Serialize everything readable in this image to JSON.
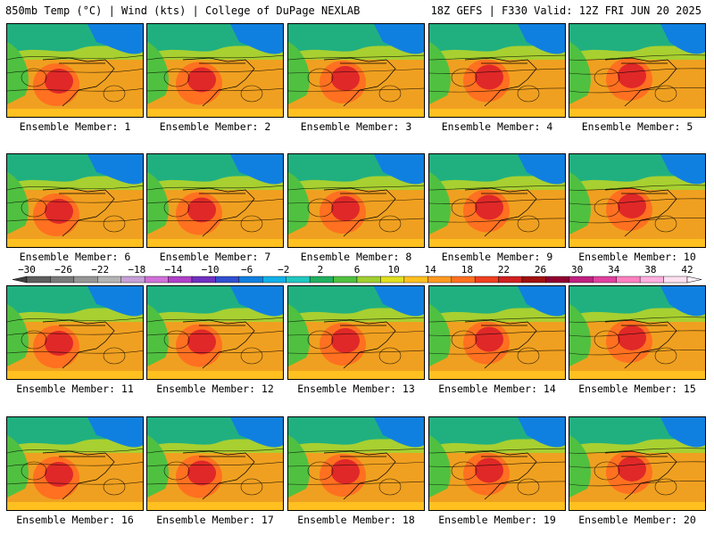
{
  "header": {
    "left": "850mb Temp (°C) | Wind (kts) | College of DuPage NEXLAB",
    "right": "18Z GEFS | F330 Valid: 12Z FRI JUN 20 2025"
  },
  "members": [
    {
      "label": "Ensemble Member: 1"
    },
    {
      "label": "Ensemble Member: 2"
    },
    {
      "label": "Ensemble Member: 3"
    },
    {
      "label": "Ensemble Member: 4"
    },
    {
      "label": "Ensemble Member: 5"
    },
    {
      "label": "Ensemble Member: 6"
    },
    {
      "label": "Ensemble Member: 7"
    },
    {
      "label": "Ensemble Member: 8"
    },
    {
      "label": "Ensemble Member: 9"
    },
    {
      "label": "Ensemble Member: 10"
    },
    {
      "label": "Ensemble Member: 11"
    },
    {
      "label": "Ensemble Member: 12"
    },
    {
      "label": "Ensemble Member: 13"
    },
    {
      "label": "Ensemble Member: 14"
    },
    {
      "label": "Ensemble Member: 15"
    },
    {
      "label": "Ensemble Member: 16"
    },
    {
      "label": "Ensemble Member: 17"
    },
    {
      "label": "Ensemble Member: 18"
    },
    {
      "label": "Ensemble Member: 19"
    },
    {
      "label": "Ensemble Member: 20"
    }
  ],
  "colorbar": {
    "tick_labels": [
      "−30",
      "−26",
      "−22",
      "−18",
      "−14",
      "−10",
      "−6",
      "−2",
      "2",
      "6",
      "10",
      "14",
      "18",
      "22",
      "26",
      "30",
      "34",
      "38",
      "42"
    ],
    "colors": [
      "#5e5e5e",
      "#7a7a7a",
      "#969696",
      "#b4b4b4",
      "#c8a0d8",
      "#d070d8",
      "#b040c8",
      "#7030c0",
      "#3050d0",
      "#1080e0",
      "#10b0e8",
      "#20c8c0",
      "#20b060",
      "#50c040",
      "#a0d030",
      "#e0e020",
      "#ffc020",
      "#ff9a20",
      "#ff7020",
      "#f04020",
      "#d02020",
      "#a01010",
      "#900030",
      "#c02080",
      "#e040a0",
      "#ff80c0",
      "#ffb0e0",
      "#ffe0f0"
    ]
  }
}
